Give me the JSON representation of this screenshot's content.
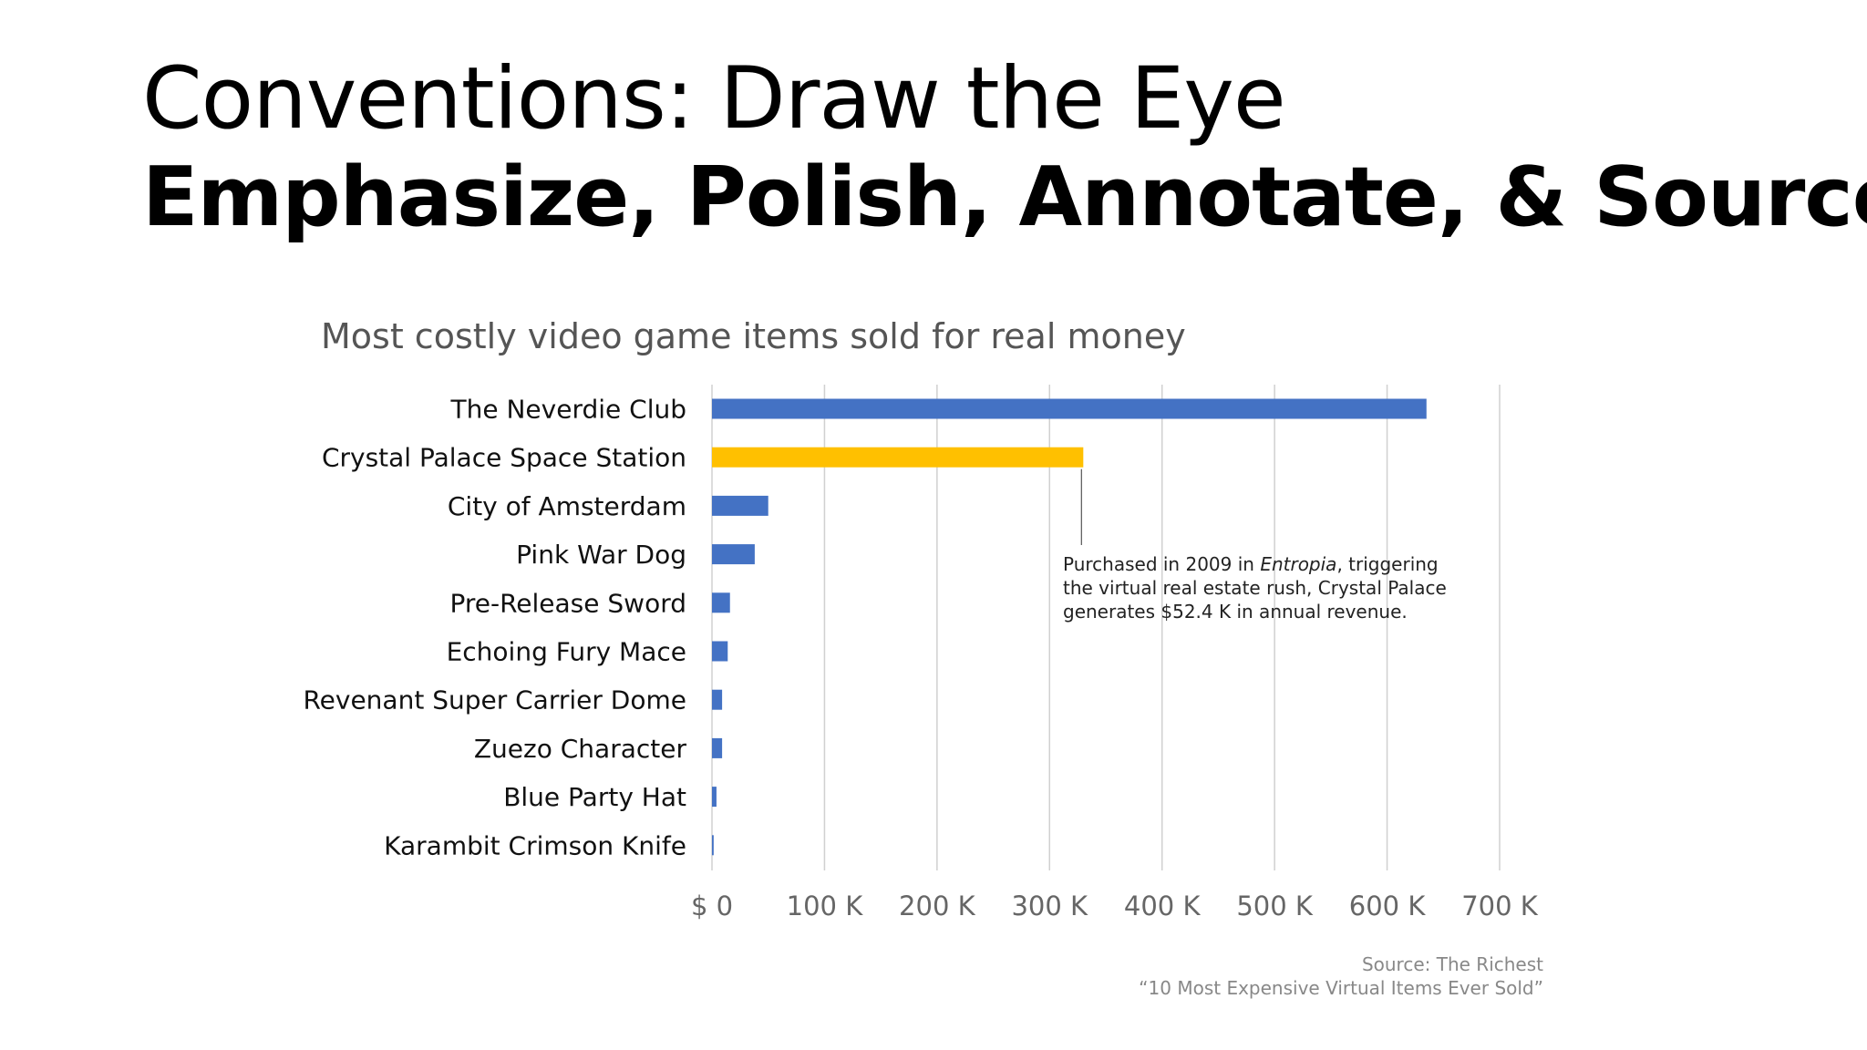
{
  "slide": {
    "title": "Conventions: Draw the Eye",
    "subtitle": "Emphasize, Polish, Annotate, & Source"
  },
  "annotation": {
    "before": "Purchased in 2009 in ",
    "emphasis": "Entropia",
    "after": ", triggering the virtual real estate rush, Crystal Palace generates $52.4 K in annual revenue."
  },
  "source": {
    "line1": "Source: The Richest",
    "line2": "“10 Most Expensive Virtual Items Ever Sold”"
  },
  "chart_data": {
    "type": "bar",
    "orientation": "horizontal",
    "title": "Most costly video game items sold for real money",
    "categories": [
      "The Neverdie Club",
      "Crystal Palace Space Station",
      "City of Amsterdam",
      "Pink War Dog",
      "Pre-Release Sword",
      "Echoing Fury Mace",
      "Revenant Super Carrier Dome",
      "Zuezo Character",
      "Blue Party Hat",
      "Karambit Crimson Knife"
    ],
    "values": [
      635000,
      330000,
      50000,
      38000,
      16000,
      14000,
      9000,
      9000,
      4000,
      1500
    ],
    "highlight_index": 1,
    "colors": {
      "default": "#4472C4",
      "highlight": "#FFC000",
      "grid": "#D0D0D0"
    },
    "xlim": [
      0,
      700000
    ],
    "xticks": [
      0,
      100000,
      200000,
      300000,
      400000,
      500000,
      600000,
      700000
    ],
    "xtick_labels": [
      "$ 0",
      "100 K",
      "200 K",
      "300 K",
      "400 K",
      "500 K",
      "600 K",
      "700 K"
    ],
    "grid": true,
    "legend": false
  }
}
